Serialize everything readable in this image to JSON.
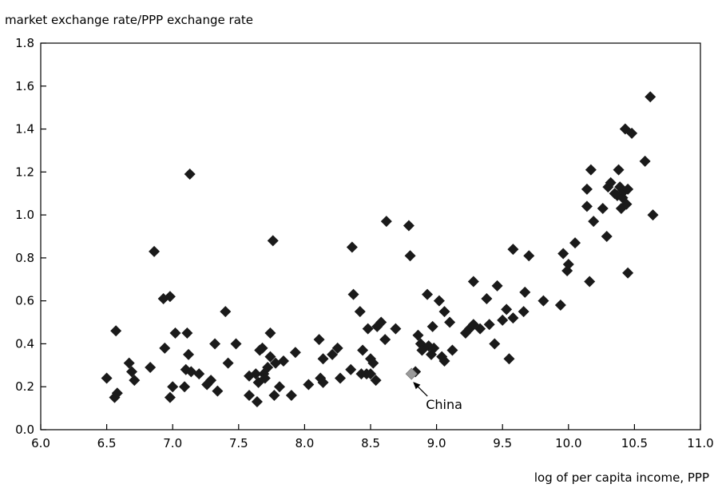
{
  "chart_data": {
    "type": "scatter",
    "title": "",
    "ylabel": "market exchange rate/PPP exchange rate",
    "xlabel": "log of per capita income, PPP",
    "xlim": [
      6.0,
      11.0
    ],
    "ylim": [
      0.0,
      1.8
    ],
    "xticks": [
      6.0,
      6.5,
      7.0,
      7.5,
      8.0,
      8.5,
      9.0,
      9.5,
      10.0,
      10.5,
      11.0
    ],
    "yticks": [
      0.0,
      0.2,
      0.4,
      0.6,
      0.8,
      1.0,
      1.2,
      1.4,
      1.6,
      1.8
    ],
    "xtick_labels": [
      "6.0",
      "6.5",
      "7.0",
      "7.5",
      "8.0",
      "8.5",
      "9.0",
      "9.5",
      "10.0",
      "10.5",
      "11.0"
    ],
    "ytick_labels": [
      "0.0",
      "0.2",
      "0.4",
      "0.6",
      "0.8",
      "1.0",
      "1.2",
      "1.4",
      "1.6",
      "1.8"
    ],
    "grid": false,
    "marker_color": "#1a1a1a",
    "highlight_color": "#9a9a9a",
    "highlight": {
      "label": "China",
      "x": 8.81,
      "y": 0.26
    },
    "points": [
      [
        6.5,
        0.24
      ],
      [
        6.56,
        0.15
      ],
      [
        6.57,
        0.46
      ],
      [
        6.58,
        0.17
      ],
      [
        6.67,
        0.31
      ],
      [
        6.69,
        0.27
      ],
      [
        6.71,
        0.23
      ],
      [
        6.83,
        0.29
      ],
      [
        6.86,
        0.83
      ],
      [
        6.93,
        0.61
      ],
      [
        6.94,
        0.38
      ],
      [
        6.98,
        0.62
      ],
      [
        6.98,
        0.15
      ],
      [
        7.0,
        0.2
      ],
      [
        7.02,
        0.45
      ],
      [
        7.09,
        0.2
      ],
      [
        7.1,
        0.28
      ],
      [
        7.11,
        0.45
      ],
      [
        7.12,
        0.35
      ],
      [
        7.13,
        1.19
      ],
      [
        7.14,
        0.27
      ],
      [
        7.2,
        0.26
      ],
      [
        7.26,
        0.21
      ],
      [
        7.29,
        0.23
      ],
      [
        7.32,
        0.4
      ],
      [
        7.34,
        0.18
      ],
      [
        7.4,
        0.55
      ],
      [
        7.42,
        0.31
      ],
      [
        7.48,
        0.4
      ],
      [
        7.58,
        0.25
      ],
      [
        7.58,
        0.16
      ],
      [
        7.63,
        0.26
      ],
      [
        7.64,
        0.13
      ],
      [
        7.65,
        0.22
      ],
      [
        7.66,
        0.37
      ],
      [
        7.68,
        0.38
      ],
      [
        7.69,
        0.26
      ],
      [
        7.7,
        0.24
      ],
      [
        7.72,
        0.29
      ],
      [
        7.74,
        0.34
      ],
      [
        7.74,
        0.45
      ],
      [
        7.76,
        0.88
      ],
      [
        7.77,
        0.16
      ],
      [
        7.78,
        0.31
      ],
      [
        7.81,
        0.2
      ],
      [
        7.84,
        0.32
      ],
      [
        7.9,
        0.16
      ],
      [
        7.93,
        0.36
      ],
      [
        8.03,
        0.21
      ],
      [
        8.11,
        0.42
      ],
      [
        8.12,
        0.24
      ],
      [
        8.14,
        0.22
      ],
      [
        8.14,
        0.33
      ],
      [
        8.21,
        0.35
      ],
      [
        8.25,
        0.38
      ],
      [
        8.27,
        0.24
      ],
      [
        8.35,
        0.28
      ],
      [
        8.36,
        0.85
      ],
      [
        8.37,
        0.63
      ],
      [
        8.42,
        0.55
      ],
      [
        8.43,
        0.26
      ],
      [
        8.44,
        0.37
      ],
      [
        8.47,
        0.26
      ],
      [
        8.48,
        0.47
      ],
      [
        8.5,
        0.33
      ],
      [
        8.5,
        0.26
      ],
      [
        8.52,
        0.31
      ],
      [
        8.54,
        0.23
      ],
      [
        8.55,
        0.48
      ],
      [
        8.58,
        0.5
      ],
      [
        8.61,
        0.42
      ],
      [
        8.62,
        0.97
      ],
      [
        8.69,
        0.47
      ],
      [
        8.79,
        0.95
      ],
      [
        8.8,
        0.81
      ],
      [
        8.84,
        0.27
      ],
      [
        8.86,
        0.44
      ],
      [
        8.88,
        0.4
      ],
      [
        8.89,
        0.37
      ],
      [
        8.93,
        0.63
      ],
      [
        8.94,
        0.39
      ],
      [
        8.96,
        0.35
      ],
      [
        8.97,
        0.48
      ],
      [
        8.98,
        0.38
      ],
      [
        9.02,
        0.6
      ],
      [
        9.04,
        0.34
      ],
      [
        9.06,
        0.32
      ],
      [
        9.06,
        0.55
      ],
      [
        9.1,
        0.5
      ],
      [
        9.12,
        0.37
      ],
      [
        9.22,
        0.45
      ],
      [
        9.25,
        0.47
      ],
      [
        9.28,
        0.69
      ],
      [
        9.28,
        0.49
      ],
      [
        9.33,
        0.47
      ],
      [
        9.38,
        0.61
      ],
      [
        9.4,
        0.49
      ],
      [
        9.44,
        0.4
      ],
      [
        9.46,
        0.67
      ],
      [
        9.5,
        0.51
      ],
      [
        9.53,
        0.56
      ],
      [
        9.55,
        0.33
      ],
      [
        9.58,
        0.52
      ],
      [
        9.58,
        0.84
      ],
      [
        9.66,
        0.55
      ],
      [
        9.67,
        0.64
      ],
      [
        9.7,
        0.81
      ],
      [
        9.81,
        0.6
      ],
      [
        9.94,
        0.58
      ],
      [
        9.96,
        0.82
      ],
      [
        9.99,
        0.74
      ],
      [
        10.0,
        0.77
      ],
      [
        10.05,
        0.87
      ],
      [
        10.14,
        1.12
      ],
      [
        10.14,
        1.04
      ],
      [
        10.16,
        0.69
      ],
      [
        10.17,
        1.21
      ],
      [
        10.19,
        0.97
      ],
      [
        10.26,
        1.03
      ],
      [
        10.29,
        0.9
      ],
      [
        10.3,
        1.13
      ],
      [
        10.32,
        1.15
      ],
      [
        10.35,
        1.1
      ],
      [
        10.37,
        1.09
      ],
      [
        10.38,
        1.21
      ],
      [
        10.39,
        1.13
      ],
      [
        10.4,
        1.03
      ],
      [
        10.41,
        1.08
      ],
      [
        10.42,
        1.11
      ],
      [
        10.43,
        1.4
      ],
      [
        10.44,
        1.05
      ],
      [
        10.45,
        1.12
      ],
      [
        10.45,
        0.73
      ],
      [
        10.48,
        1.38
      ],
      [
        10.58,
        1.25
      ],
      [
        10.62,
        1.55
      ],
      [
        10.64,
        1.0
      ]
    ]
  }
}
